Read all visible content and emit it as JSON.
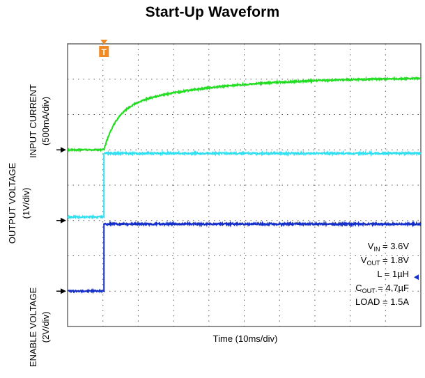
{
  "chart_data": {
    "type": "line",
    "title": "Start-Up Waveform",
    "xlabel": "Time (10ms/div)",
    "x_divisions": 10,
    "y_divisions": 8,
    "trigger_marker": "T",
    "channels": [
      {
        "label": "INPUT CURRENT",
        "scale": "(500mA/div)",
        "color": "#22dd22"
      },
      {
        "label": "OUTPUT VOLTAGE",
        "scale": "(1V/div)",
        "color": "#33e0f0"
      },
      {
        "label": "ENABLE VOLTAGE",
        "scale": "(2V/div)",
        "color": "#1530c8"
      }
    ],
    "annotations": [
      {
        "main": "V",
        "sub": "IN",
        "rest": " = 3.6V"
      },
      {
        "main": "V",
        "sub": "OUT",
        "rest": " = 1.8V"
      },
      {
        "main": "L = 1µH",
        "sub": "",
        "rest": ""
      },
      {
        "main": "C",
        "sub": "OUT",
        "rest": " = 4.7µF"
      },
      {
        "main": "LOAD = 1.5A",
        "sub": "",
        "rest": ""
      }
    ],
    "grid": true,
    "colors": {
      "grid": "#555555",
      "trigger": "#f08a24",
      "ref_marker": "#1530c8"
    }
  }
}
